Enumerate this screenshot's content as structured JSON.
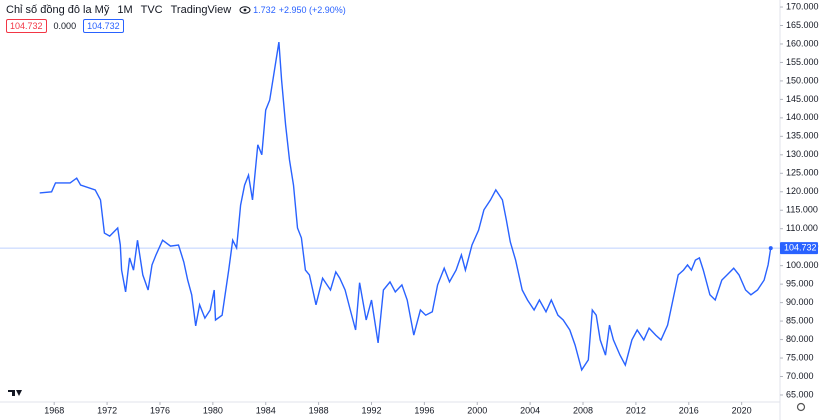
{
  "chart_data": {
    "type": "line",
    "title": "Chỉ số đồng đô la Mỹ",
    "interval": "1M",
    "exchange": "TVC",
    "source": "TradingView",
    "price_partial": "1.732",
    "change": "+2.950 (+2.90%)",
    "legend_values": [
      "104.732",
      "0.000",
      "104.732"
    ],
    "xlim": [
      1963.9,
      2022.9
    ],
    "ylim": [
      63.1,
      171.9
    ],
    "xticks": [
      1968,
      1972,
      1976,
      1980,
      1984,
      1988,
      1992,
      1996,
      2000,
      2004,
      2008,
      2012,
      2016,
      2020
    ],
    "yticks": [
      {
        "value": 170,
        "label": "170.000"
      },
      {
        "value": 165,
        "label": "165.000"
      },
      {
        "value": 160,
        "label": "160.000"
      },
      {
        "value": 155,
        "label": "155.000"
      },
      {
        "value": 150,
        "label": "150.000"
      },
      {
        "value": 145,
        "label": "145.000"
      },
      {
        "value": 140,
        "label": "140.000"
      },
      {
        "value": 135,
        "label": "135.000"
      },
      {
        "value": 130,
        "label": "130.000"
      },
      {
        "value": 125,
        "label": "125.000"
      },
      {
        "value": 120,
        "label": "120.000"
      },
      {
        "value": 115,
        "label": "115.000"
      },
      {
        "value": 110,
        "label": "110.000"
      },
      {
        "value": 105,
        "label": "105.000"
      },
      {
        "value": 100,
        "label": "100.000"
      },
      {
        "value": 95,
        "label": "95.000"
      },
      {
        "value": 90,
        "label": "90.000"
      },
      {
        "value": 85,
        "label": "85.000"
      },
      {
        "value": 80,
        "label": "80.000"
      },
      {
        "value": 75,
        "label": "75.000"
      },
      {
        "value": 70,
        "label": "70.000"
      },
      {
        "value": 65,
        "label": "65.000"
      }
    ],
    "x": [
      1966.9,
      1967.8,
      1968.1,
      1969.2,
      1969.7,
      1970.0,
      1971.1,
      1971.5,
      1971.8,
      1972.2,
      1972.8,
      1973.0,
      1973.1,
      1973.4,
      1973.7,
      1974.0,
      1974.3,
      1974.7,
      1975.1,
      1975.4,
      1975.7,
      1976.2,
      1976.8,
      1977.4,
      1977.8,
      1978.1,
      1978.4,
      1978.7,
      1979.0,
      1979.4,
      1979.8,
      1980.1,
      1980.2,
      1980.7,
      1981.2,
      1981.5,
      1981.8,
      1982.1,
      1982.4,
      1982.7,
      1983.0,
      1983.4,
      1983.7,
      1984.0,
      1984.3,
      1984.6,
      1985.0,
      1985.2,
      1985.5,
      1985.8,
      1986.1,
      1986.4,
      1986.7,
      1987.0,
      1987.3,
      1987.8,
      1988.3,
      1988.9,
      1989.3,
      1989.6,
      1990.0,
      1990.4,
      1990.8,
      1991.1,
      1991.6,
      1992.0,
      1992.5,
      1992.9,
      1993.4,
      1993.8,
      1994.3,
      1994.7,
      1995.2,
      1995.7,
      1996.1,
      1996.6,
      1997.0,
      1997.5,
      1997.9,
      1998.4,
      1998.8,
      1999.1,
      1999.6,
      2000.1,
      2000.5,
      2001.0,
      2001.4,
      2001.9,
      2002.2,
      2002.5,
      2002.9,
      2003.4,
      2003.8,
      2004.3,
      2004.7,
      2005.2,
      2005.6,
      2006.1,
      2006.5,
      2007.0,
      2007.4,
      2007.9,
      2008.4,
      2008.7,
      2009.0,
      2009.3,
      2009.7,
      2010.0,
      2010.3,
      2010.8,
      2011.2,
      2011.7,
      2012.1,
      2012.6,
      2013.0,
      2013.5,
      2013.9,
      2014.4,
      2014.8,
      2015.2,
      2015.6,
      2015.9,
      2016.2,
      2016.5,
      2016.8,
      2017.1,
      2017.6,
      2018.0,
      2018.5,
      2018.9,
      2019.4,
      2019.8,
      2020.3,
      2020.7,
      2021.2,
      2021.7,
      2022.0,
      2022.2
    ],
    "series": [
      {
        "color": "#2962ff",
        "values": [
          119.7,
          120,
          122.4,
          122.4,
          123.7,
          121.8,
          120.5,
          117.8,
          108.8,
          108,
          110.2,
          105.6,
          98.8,
          92.9,
          102.1,
          98.8,
          106.9,
          97.5,
          93.4,
          100.2,
          102.9,
          106.9,
          105.3,
          105.6,
          101,
          96.1,
          92.1,
          83.7,
          89.4,
          85.8,
          88,
          93.4,
          85.3,
          86.6,
          98.8,
          106.9,
          104.8,
          116.4,
          121.8,
          124.5,
          117.8,
          132.7,
          130,
          142.1,
          144.8,
          151.6,
          160.5,
          150.2,
          138.1,
          128.6,
          121.8,
          110.2,
          107.5,
          98.8,
          97.5,
          89.4,
          96.6,
          93.4,
          98.3,
          96.6,
          93.4,
          88,
          82.6,
          95.4,
          85.3,
          90.7,
          79.1,
          93.4,
          95.6,
          92.9,
          94.8,
          90.7,
          81.2,
          88,
          86.6,
          87.5,
          94.8,
          99.3,
          95.6,
          98.8,
          102.9,
          98.8,
          105.6,
          109.6,
          115.1,
          117.8,
          120.5,
          117.8,
          112.4,
          106.4,
          101.5,
          93.4,
          90.7,
          88,
          90.7,
          87.5,
          90.7,
          86.6,
          85.3,
          82.6,
          78.5,
          71.8,
          74.5,
          88,
          86.6,
          79.9,
          75.8,
          83.9,
          79.9,
          75.8,
          73.1,
          79.9,
          82.6,
          79.9,
          83.1,
          81.2,
          79.9,
          83.9,
          90.7,
          97.5,
          98.8,
          100.2,
          98.8,
          101.5,
          102.1,
          98.8,
          92.1,
          90.7,
          96.1,
          97.5,
          99.3,
          97.5,
          93.4,
          92.1,
          93.4,
          96.1,
          100.2,
          104.732
        ]
      }
    ]
  }
}
